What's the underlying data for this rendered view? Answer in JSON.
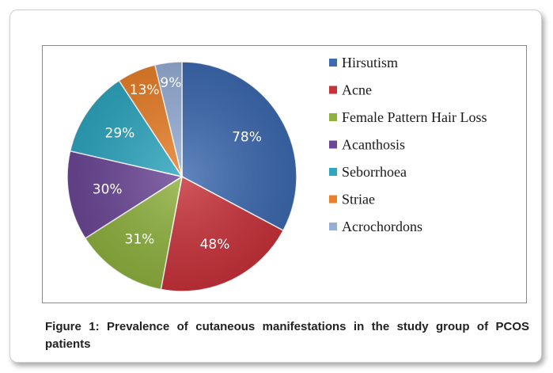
{
  "caption": "Figure 1: Prevalence of cutaneous manifestations in the study group of PCOS patients",
  "chart_data": {
    "type": "pie",
    "categories": [
      "Hirsutism",
      "Acne",
      "Female Pattern Hair Loss",
      "Acanthosis",
      "Seborrhoea",
      "Striae",
      "Acrochordons"
    ],
    "values": [
      78,
      48,
      31,
      30,
      29,
      13,
      9
    ],
    "data_labels": [
      "78%",
      "48%",
      "31%",
      "30%",
      "29%",
      "13%",
      "9%"
    ],
    "colors": [
      "#3d6ab0",
      "#c8323a",
      "#8fb13f",
      "#6c4796",
      "#2ea6bf",
      "#e9802a",
      "#96aed6"
    ],
    "legend_position": "right",
    "title": ""
  }
}
